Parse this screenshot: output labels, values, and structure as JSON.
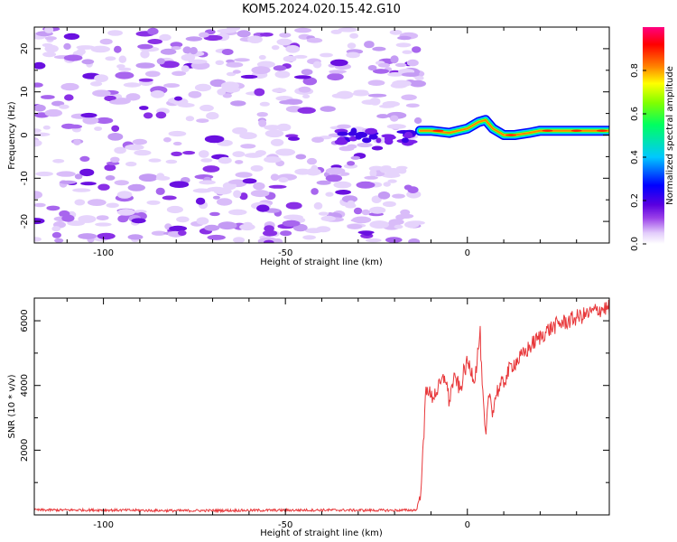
{
  "title": "KOM5.2024.020.15.42.G10",
  "chart_data": [
    {
      "type": "heatmap",
      "name": "spectrogram",
      "xlabel": "Height of straight line (km)",
      "ylabel": "Frequency (Hz)",
      "xlim": [
        -119,
        39
      ],
      "ylim": [
        -25,
        25
      ],
      "xticks": [
        -100,
        -50,
        0
      ],
      "xtick_labels": [
        "-100",
        "-50",
        "0"
      ],
      "yticks": [
        -20,
        -10,
        0,
        10,
        20
      ],
      "ytick_labels": [
        "-20",
        "-10",
        "0",
        "10",
        "20"
      ],
      "colorbar": {
        "label": "Normalized spectral amplitude",
        "range": [
          0,
          1
        ],
        "ticks": [
          0.0,
          0.2,
          0.4,
          0.6,
          0.8
        ],
        "tick_labels": [
          "0.0",
          "0.2",
          "0.4",
          "0.6",
          "0.8"
        ],
        "colormap": [
          "#ffffff",
          "#e3cdfb",
          "#9a40e8",
          "#5a00e0",
          "#0000ff",
          "#00c8ff",
          "#00ff60",
          "#80ff00",
          "#ffff00",
          "#ff8000",
          "#ff0000",
          "#ff0080"
        ]
      },
      "noise_region_x": [
        -119,
        -13
      ],
      "signal_line": {
        "x": [
          -13,
          -10,
          -5,
          0,
          3,
          5,
          7,
          10,
          13,
          17,
          20,
          25,
          30,
          35,
          39
        ],
        "y": [
          1,
          1,
          0.5,
          1.5,
          3,
          3.5,
          1.5,
          0,
          0,
          0.5,
          1,
          1,
          1,
          1,
          1
        ]
      },
      "grid": false
    },
    {
      "type": "line",
      "name": "snr",
      "xlabel": "Height of straight line (km)",
      "ylabel": "SNR (10 * v/v)",
      "xlim": [
        -119,
        39
      ],
      "ylim": [
        0,
        6700
      ],
      "xticks": [
        -100,
        -50,
        0
      ],
      "xtick_labels": [
        "-100",
        "-50",
        "0"
      ],
      "yticks": [
        2000,
        4000,
        6000
      ],
      "ytick_labels": [
        "2000",
        "4000",
        "6000"
      ],
      "color": "#e8383b",
      "x": [
        -119,
        -100,
        -80,
        -60,
        -40,
        -20,
        -14,
        -13,
        -12,
        -11.5,
        -11,
        -10,
        -8,
        -6,
        -5,
        -4,
        -3,
        -2,
        -1,
        0,
        1,
        2,
        3,
        3.5,
        4,
        5,
        6,
        7,
        8,
        10,
        12,
        15,
        18,
        20,
        22,
        25,
        28,
        30,
        33,
        36,
        39
      ],
      "y": [
        150,
        150,
        130,
        140,
        150,
        140,
        150,
        600,
        2200,
        3800,
        4000,
        3600,
        3900,
        4300,
        3500,
        4100,
        4200,
        3800,
        4400,
        4700,
        4500,
        4200,
        5100,
        5700,
        4100,
        2300,
        3800,
        3200,
        3800,
        4100,
        4600,
        4900,
        5300,
        5500,
        5700,
        5900,
        6000,
        6100,
        6200,
        6350,
        6400
      ],
      "grid": false
    }
  ]
}
